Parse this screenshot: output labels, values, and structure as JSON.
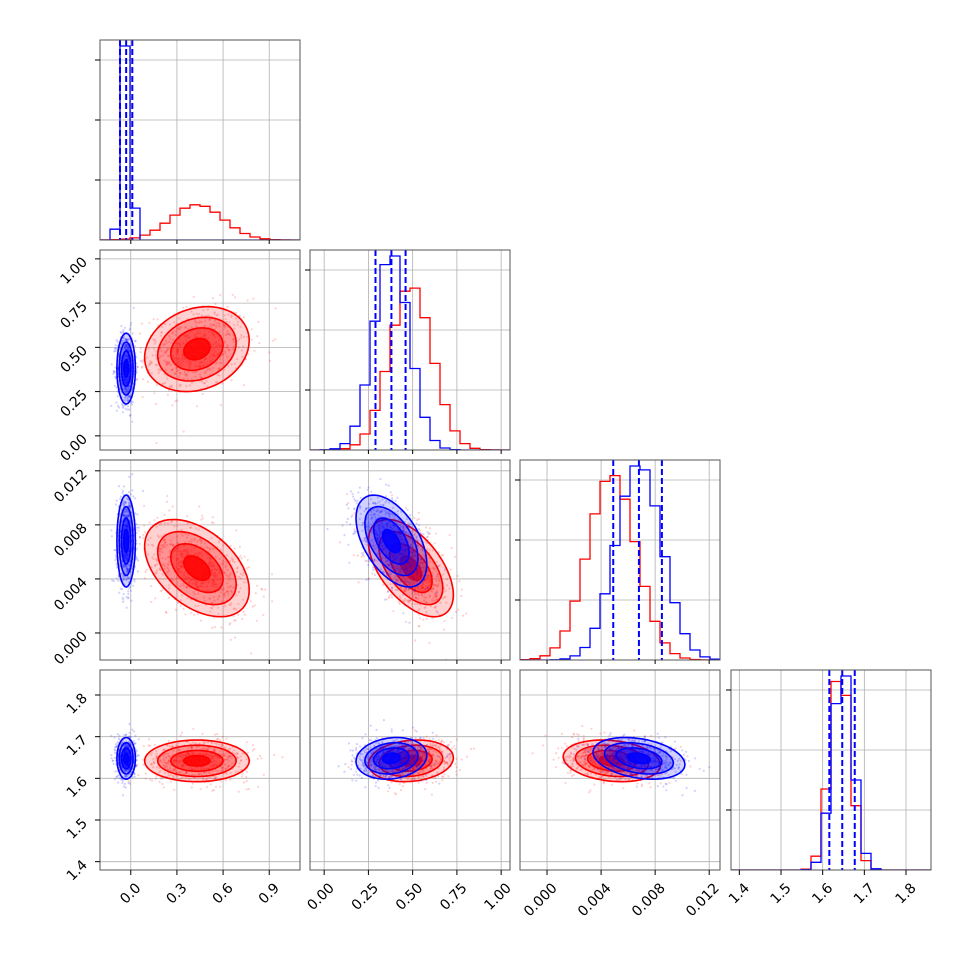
{
  "chart_data": {
    "type": "corner",
    "parameters": [
      {
        "range": [
          -0.2,
          1.1
        ],
        "ticks": [
          0.0,
          0.3,
          0.6,
          0.9
        ],
        "tick_labels": [
          "0.0",
          "0.3",
          "0.6",
          "0.9"
        ]
      },
      {
        "range": [
          -0.08,
          1.05
        ],
        "ticks": [
          0.0,
          0.25,
          0.5,
          0.75,
          1.0
        ],
        "tick_labels": [
          "0.00",
          "0.25",
          "0.50",
          "0.75",
          "1.00"
        ]
      },
      {
        "range": [
          -0.002,
          0.0128
        ],
        "ticks": [
          0.0,
          0.004,
          0.008,
          0.012
        ],
        "tick_labels": [
          "0.000",
          "0.004",
          "0.008",
          "0.012"
        ]
      },
      {
        "range": [
          1.38,
          1.86
        ],
        "ticks": [
          1.4,
          1.5,
          1.6,
          1.7,
          1.8
        ],
        "tick_labels": [
          "1.4",
          "1.5",
          "1.6",
          "1.7",
          "1.8"
        ]
      }
    ],
    "series": [
      {
        "color": "#ff0000",
        "means": [
          0.43,
          0.49,
          0.0048,
          1.642
        ],
        "sds": [
          0.17,
          0.12,
          0.0018,
          0.025
        ],
        "correlations": {
          "0-1": 0.2,
          "0-2": -0.45,
          "0-3": 0.0,
          "1-2": -0.55,
          "1-3": 0.15,
          "2-3": -0.2
        }
      },
      {
        "color": "#0000ff",
        "means": [
          -0.03,
          0.38,
          0.0068,
          1.648
        ],
        "sds": [
          0.03,
          0.1,
          0.0017,
          0.025
        ],
        "correlations": {
          "0-1": 0.0,
          "0-2": 0.0,
          "0-3": 0.0,
          "1-2": -0.5,
          "1-3": 0.15,
          "2-3": -0.3
        }
      }
    ],
    "quantile_lines": {
      "color": "#0000ff",
      "values": [
        [
          -0.07,
          -0.03,
          0.01
        ],
        [
          0.29,
          0.38,
          0.46
        ],
        [
          0.0049,
          0.0068,
          0.0085
        ],
        [
          1.616,
          1.647,
          1.677
        ]
      ]
    },
    "contour_levels_sigma": [
      0.5,
      1.0,
      1.5,
      2.0
    ],
    "grid": true
  }
}
